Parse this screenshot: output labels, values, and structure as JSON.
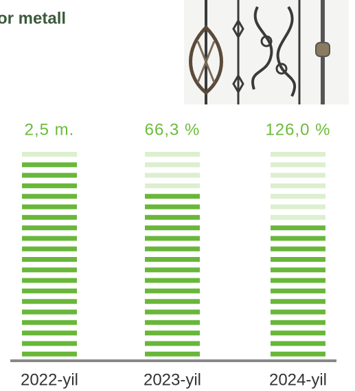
{
  "header": {
    "title": "or metall"
  },
  "columns": [
    {
      "value_label": "2,5 m.",
      "year": "2022-yil"
    },
    {
      "value_label": "66,3 %",
      "year": "2023-yil"
    },
    {
      "value_label": "126,0 %",
      "year": "2024-yil"
    }
  ]
}
